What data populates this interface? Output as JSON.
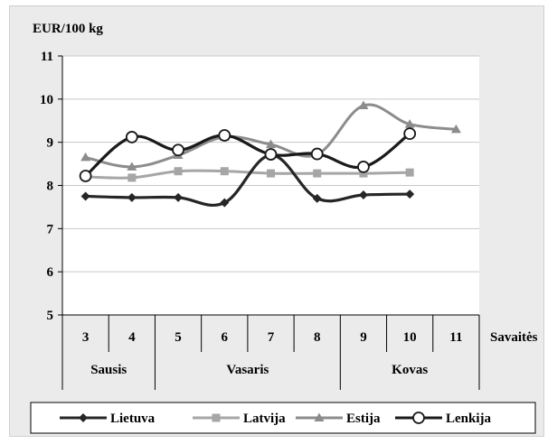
{
  "chart_data": {
    "type": "line",
    "ylabel": "EUR/100 kg",
    "xlabel": "Savaitės",
    "ylim": [
      5,
      11
    ],
    "yticks": [
      5,
      6,
      7,
      8,
      9,
      10,
      11
    ],
    "grid": true,
    "legend_position": "bottom",
    "categories": [
      "3",
      "4",
      "5",
      "6",
      "7",
      "8",
      "9",
      "10",
      "11"
    ],
    "month_groups": [
      {
        "label": "Sausis",
        "weeks": [
          "3",
          "4"
        ]
      },
      {
        "label": "Vasaris",
        "weeks": [
          "5",
          "6",
          "7",
          "8"
        ]
      },
      {
        "label": "Kovas",
        "weeks": [
          "9",
          "10",
          "11"
        ]
      }
    ],
    "series": [
      {
        "name": "Lietuva",
        "color": "#262626",
        "marker": "diamond",
        "values": [
          7.75,
          7.72,
          7.72,
          7.6,
          8.7,
          7.7,
          7.78,
          7.8,
          null
        ]
      },
      {
        "name": "Latvija",
        "color": "#a6a6a6",
        "marker": "square",
        "values": [
          8.2,
          8.18,
          8.33,
          8.33,
          8.28,
          8.28,
          8.28,
          8.3,
          null
        ]
      },
      {
        "name": "Estija",
        "color": "#8c8c8c",
        "marker": "triangle",
        "values": [
          8.65,
          8.43,
          8.7,
          9.12,
          8.95,
          8.72,
          9.85,
          9.42,
          9.3
        ]
      },
      {
        "name": "Lenkija",
        "color": "#1a1a1a",
        "marker": "circle",
        "values": [
          8.22,
          9.12,
          8.82,
          9.16,
          8.72,
          8.73,
          8.43,
          9.2,
          null
        ]
      }
    ]
  }
}
